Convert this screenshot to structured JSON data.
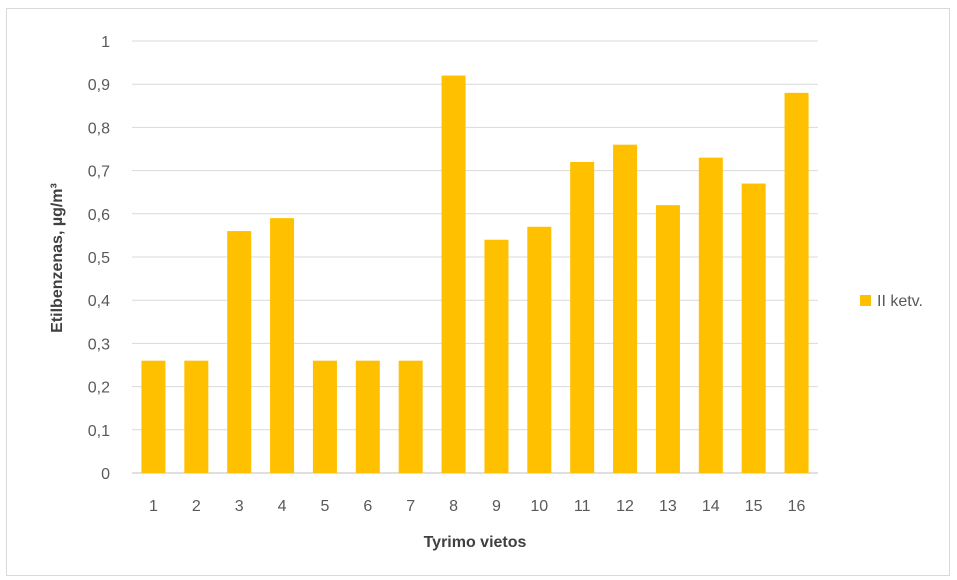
{
  "chart_data": {
    "type": "bar",
    "categories": [
      "1",
      "2",
      "3",
      "4",
      "5",
      "6",
      "7",
      "8",
      "9",
      "10",
      "11",
      "12",
      "13",
      "14",
      "15",
      "16"
    ],
    "series": [
      {
        "name": "II ketv.",
        "color": "#ffc000",
        "values": [
          0.26,
          0.26,
          0.56,
          0.59,
          0.26,
          0.26,
          0.26,
          0.92,
          0.54,
          0.57,
          0.72,
          0.76,
          0.62,
          0.73,
          0.67,
          0.88
        ]
      }
    ],
    "title": "",
    "xlabel": "Tyrimo vietos",
    "ylabel": "Etilbenzenas, µg/m³",
    "ylim": [
      0,
      1
    ],
    "yticks": [
      "0",
      "0,1",
      "0,2",
      "0,3",
      "0,4",
      "0,5",
      "0,6",
      "0,7",
      "0,8",
      "0,9",
      "1"
    ],
    "grid": true,
    "legend_position": "right",
    "colors": {
      "bar": "#ffc000",
      "grid": "#d9d9d9",
      "axis": "#bfbfbf",
      "tick_text": "#595959",
      "title_text": "#404040"
    }
  }
}
